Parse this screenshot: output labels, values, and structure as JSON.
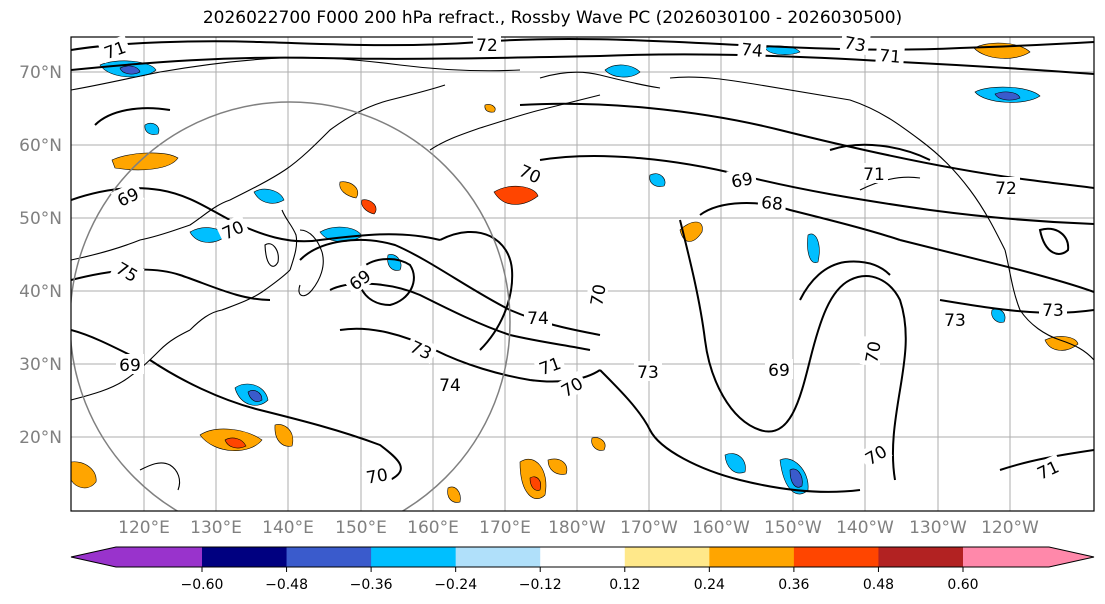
{
  "title": "2026022700 F000 200 hPa refract., Rossby Wave PC (2026030100 - 2026030500)",
  "lat_labels": [
    "70°N",
    "60°N",
    "50°N",
    "40°N",
    "30°N",
    "20°N"
  ],
  "lon_labels": [
    "120°E",
    "130°E",
    "140°E",
    "150°E",
    "160°E",
    "170°E",
    "180°W",
    "170°W",
    "160°W",
    "150°W",
    "140°W",
    "130°W",
    "120°W"
  ],
  "contour_labels": [
    "71",
    "72",
    "74",
    "73",
    "71",
    "70",
    "69",
    "71",
    "72",
    "68",
    "69",
    "70",
    "75",
    "69",
    "70",
    "74",
    "73",
    "74",
    "71",
    "70",
    "73",
    "69",
    "70",
    "73",
    "73",
    "69",
    "70",
    "70",
    "71"
  ],
  "colorbar": {
    "colors": [
      "#9933cc",
      "#000080",
      "#3a5bcc",
      "#00bfff",
      "#b0e0fa",
      "#ffffff",
      "#ffe88a",
      "#ffa500",
      "#ff4500",
      "#b22222",
      "#ff88aa"
    ],
    "ticks": [
      "−0.60",
      "−0.48",
      "−0.36",
      "−0.24",
      "−0.12",
      "0.12",
      "0.24",
      "0.36",
      "0.48",
      "0.60"
    ]
  }
}
